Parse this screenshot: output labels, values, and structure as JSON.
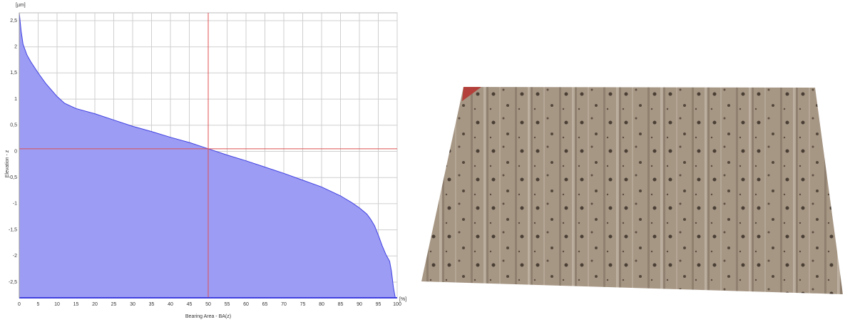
{
  "chart_data": {
    "type": "area",
    "y_unit": "[µm]",
    "x_unit": "[%]",
    "xlabel": "Bearing Area - BA(z)",
    "ylabel": "Elevation - z",
    "x": [
      0,
      0.5,
      1,
      2,
      3,
      5,
      7,
      10,
      12,
      15,
      20,
      25,
      30,
      35,
      40,
      45,
      50,
      55,
      60,
      65,
      70,
      75,
      80,
      85,
      88,
      90,
      92,
      93,
      94,
      95,
      96,
      97,
      98,
      98.5,
      99,
      99.5,
      100
    ],
    "values": [
      2.65,
      2.3,
      2.05,
      1.85,
      1.72,
      1.5,
      1.3,
      1.05,
      0.92,
      0.82,
      0.72,
      0.6,
      0.48,
      0.38,
      0.27,
      0.17,
      0.05,
      -0.07,
      -0.18,
      -0.3,
      -0.42,
      -0.55,
      -0.68,
      -0.85,
      -0.98,
      -1.08,
      -1.2,
      -1.3,
      -1.42,
      -1.6,
      -1.8,
      -1.97,
      -2.1,
      -2.3,
      -2.6,
      -2.8,
      -2.8
    ],
    "color": "#9c9cf5",
    "line_color": "#4040e0",
    "crosshair": {
      "x": 50,
      "y": 0.05,
      "color": "#e05050"
    },
    "xlim": [
      0,
      100
    ],
    "ylim": [
      -2.8,
      2.65
    ],
    "xticks": [
      0,
      5,
      10,
      15,
      20,
      25,
      30,
      35,
      40,
      45,
      50,
      55,
      60,
      65,
      70,
      75,
      80,
      85,
      90,
      95,
      100
    ],
    "yticks": [
      {
        "value": 2.5,
        "label": "2,5"
      },
      2,
      {
        "value": 1.5,
        "label": "1,5"
      },
      1,
      {
        "value": 0.5,
        "label": "0,5"
      },
      0,
      {
        "value": -0.5,
        "label": "-0,5"
      },
      -1,
      {
        "value": -1.5,
        "label": "-1,5"
      },
      -2,
      {
        "value": -2.5,
        "label": "-2,5"
      }
    ],
    "grid": true
  }
}
